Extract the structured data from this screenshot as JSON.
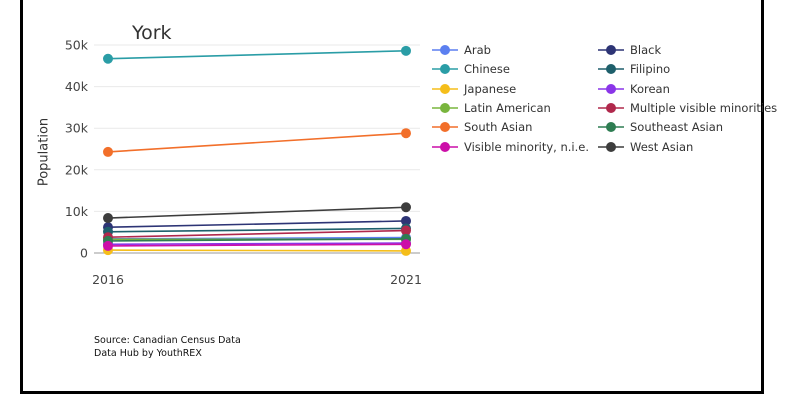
{
  "chart_data": {
    "type": "line",
    "title": "York",
    "xlabel": "",
    "ylabel": "Population",
    "x": [
      "2016",
      "2021"
    ],
    "ylim": [
      0,
      50000
    ],
    "yticks": [
      0,
      10000,
      20000,
      30000,
      40000,
      50000
    ],
    "ytick_labels": [
      "0",
      "10k",
      "20k",
      "30k",
      "40k",
      "50k"
    ],
    "grid": true,
    "legend_position": "right",
    "series": [
      {
        "name": "Arab",
        "color": "#5b7ff0",
        "values": [
          3400,
          3700
        ]
      },
      {
        "name": "Black",
        "color": "#2d3475",
        "values": [
          6200,
          7700
        ]
      },
      {
        "name": "Chinese",
        "color": "#2a9da6",
        "values": [
          46700,
          48600
        ]
      },
      {
        "name": "Filipino",
        "color": "#1e5f6b",
        "values": [
          5100,
          5900
        ]
      },
      {
        "name": "Japanese",
        "color": "#f5be1a",
        "values": [
          700,
          500
        ]
      },
      {
        "name": "Korean",
        "color": "#8a35e8",
        "values": [
          2100,
          2400
        ]
      },
      {
        "name": "Latin American",
        "color": "#79b53d",
        "values": [
          3300,
          3300
        ]
      },
      {
        "name": "Multiple visible minorities",
        "color": "#b0284c",
        "values": [
          3800,
          5400
        ]
      },
      {
        "name": "South Asian",
        "color": "#f26f2a",
        "values": [
          24300,
          28800
        ]
      },
      {
        "name": "Southeast Asian",
        "color": "#2e7d52",
        "values": [
          2900,
          3400
        ]
      },
      {
        "name": "Visible minority, n.i.e.",
        "color": "#cc0fa8",
        "values": [
          1700,
          2100
        ]
      },
      {
        "name": "West Asian",
        "color": "#3d3d3d",
        "values": [
          8400,
          11000
        ]
      }
    ]
  },
  "source": {
    "line1": "Source: Canadian Census Data",
    "line2": "Data Hub by YouthREX"
  }
}
